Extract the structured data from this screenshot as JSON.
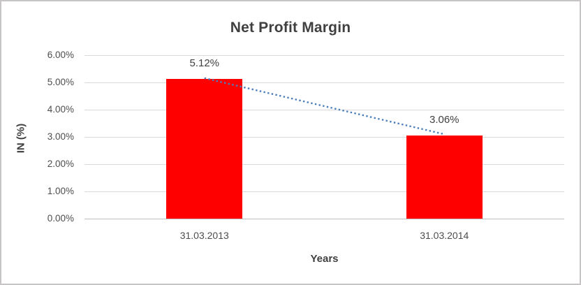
{
  "chart": {
    "colors": {
      "bar": "#ff0000",
      "trendline": "#4a7ebb",
      "gridline": "#d9d9d9",
      "baseline": "#bfbfbf",
      "title_text": "#404040",
      "tick_text": "#4d4d4d",
      "frame_border": "#c6c4c4",
      "background": "#ffffff"
    }
  },
  "chart_data": {
    "type": "bar",
    "title": "Net Profit Margin",
    "xlabel": "Years",
    "ylabel": "IN (%)",
    "categories": [
      "31.03.2013",
      "31.03.2014"
    ],
    "values": [
      5.12,
      3.06
    ],
    "data_labels": [
      "5.12%",
      "3.06%"
    ],
    "ylim": [
      0,
      6
    ],
    "y_tick_step": 1,
    "y_tick_labels": [
      "0.00%",
      "1.00%",
      "2.00%",
      "3.00%",
      "4.00%",
      "5.00%",
      "6.00%"
    ],
    "grid": true,
    "legend": "none",
    "trendline": {
      "style": "dotted",
      "connects": "bar tops",
      "from_value": 5.12,
      "to_value": 3.06
    }
  }
}
